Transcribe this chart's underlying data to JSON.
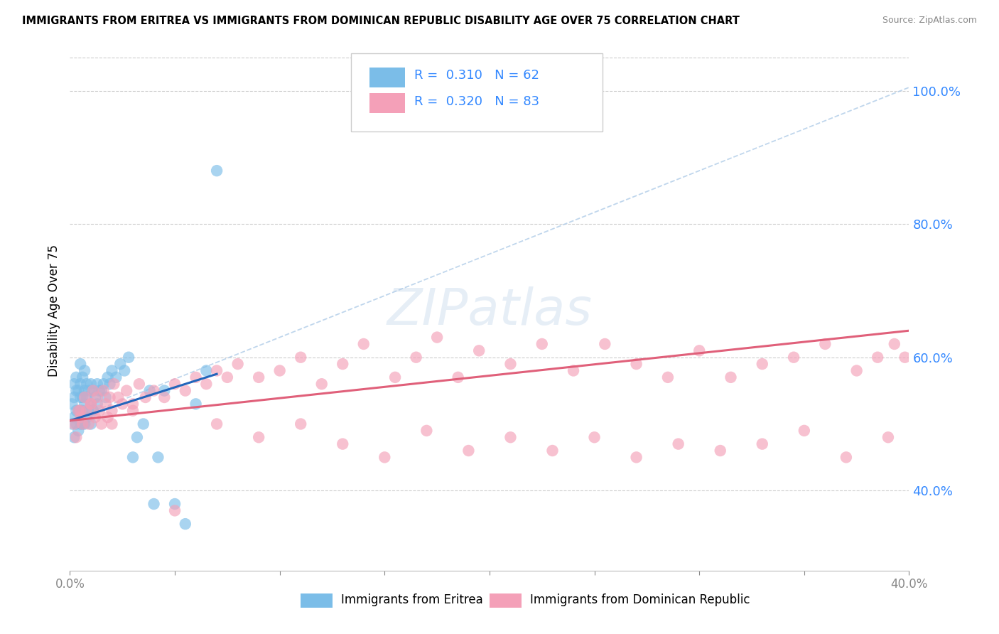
{
  "title": "IMMIGRANTS FROM ERITREA VS IMMIGRANTS FROM DOMINICAN REPUBLIC DISABILITY AGE OVER 75 CORRELATION CHART",
  "source": "Source: ZipAtlas.com",
  "ylabel": "Disability Age Over 75",
  "xmin": 0.0,
  "xmax": 0.4,
  "ymin": 0.28,
  "ymax": 1.06,
  "yticks": [
    0.4,
    0.6,
    0.8,
    1.0
  ],
  "ytick_labels": [
    "40.0%",
    "60.0%",
    "80.0%",
    "100.0%"
  ],
  "xticks": [
    0.0,
    0.05,
    0.1,
    0.15,
    0.2,
    0.25,
    0.3,
    0.35,
    0.4
  ],
  "xtick_labels": [
    "0.0%",
    "",
    "",
    "",
    "",
    "",
    "",
    "",
    "40.0%"
  ],
  "r_eritrea": 0.31,
  "n_eritrea": 62,
  "r_dominican": 0.32,
  "n_dominican": 83,
  "color_eritrea": "#7bbde8",
  "color_dominican": "#f4a0b8",
  "line_color_eritrea": "#2266bb",
  "line_color_dominican": "#e0607a",
  "diag_line_color": "#b0cce8",
  "background_color": "#ffffff",
  "watermark": "ZIPatlas",
  "legend_r1": "R =  0.310   N = 62",
  "legend_r2": "R =  0.320   N = 83",
  "legend_label1": "Immigrants from Eritrea",
  "legend_label2": "Immigrants from Dominican Republic",
  "eritrea_x": [
    0.001,
    0.001,
    0.002,
    0.002,
    0.002,
    0.002,
    0.003,
    0.003,
    0.003,
    0.003,
    0.004,
    0.004,
    0.004,
    0.005,
    0.005,
    0.005,
    0.005,
    0.005,
    0.006,
    0.006,
    0.006,
    0.006,
    0.007,
    0.007,
    0.007,
    0.007,
    0.008,
    0.008,
    0.008,
    0.009,
    0.009,
    0.01,
    0.01,
    0.01,
    0.011,
    0.011,
    0.012,
    0.013,
    0.013,
    0.014,
    0.015,
    0.016,
    0.017,
    0.018,
    0.019,
    0.02,
    0.022,
    0.024,
    0.026,
    0.028,
    0.03,
    0.032,
    0.035,
    0.038,
    0.04,
    0.042,
    0.045,
    0.05,
    0.055,
    0.06,
    0.065,
    0.07
  ],
  "eritrea_y": [
    0.5,
    0.53,
    0.48,
    0.51,
    0.54,
    0.56,
    0.5,
    0.52,
    0.55,
    0.57,
    0.49,
    0.52,
    0.55,
    0.5,
    0.52,
    0.54,
    0.56,
    0.59,
    0.5,
    0.52,
    0.54,
    0.57,
    0.5,
    0.53,
    0.55,
    0.58,
    0.51,
    0.54,
    0.56,
    0.52,
    0.55,
    0.5,
    0.53,
    0.56,
    0.52,
    0.55,
    0.54,
    0.53,
    0.56,
    0.55,
    0.55,
    0.56,
    0.54,
    0.57,
    0.56,
    0.58,
    0.57,
    0.59,
    0.58,
    0.6,
    0.45,
    0.48,
    0.5,
    0.55,
    0.38,
    0.45,
    0.55,
    0.38,
    0.35,
    0.53,
    0.58,
    0.88
  ],
  "dominican_x": [
    0.002,
    0.003,
    0.004,
    0.005,
    0.006,
    0.007,
    0.008,
    0.009,
    0.01,
    0.011,
    0.012,
    0.013,
    0.014,
    0.015,
    0.016,
    0.017,
    0.018,
    0.019,
    0.02,
    0.021,
    0.023,
    0.025,
    0.027,
    0.03,
    0.033,
    0.036,
    0.04,
    0.045,
    0.05,
    0.055,
    0.06,
    0.065,
    0.07,
    0.075,
    0.08,
    0.09,
    0.1,
    0.11,
    0.12,
    0.13,
    0.14,
    0.155,
    0.165,
    0.175,
    0.185,
    0.195,
    0.21,
    0.225,
    0.24,
    0.255,
    0.27,
    0.285,
    0.3,
    0.315,
    0.33,
    0.345,
    0.36,
    0.375,
    0.385,
    0.393,
    0.398,
    0.39,
    0.37,
    0.35,
    0.33,
    0.31,
    0.29,
    0.27,
    0.25,
    0.23,
    0.21,
    0.19,
    0.17,
    0.15,
    0.13,
    0.11,
    0.09,
    0.07,
    0.05,
    0.03,
    0.02,
    0.01,
    0.005
  ],
  "dominican_y": [
    0.5,
    0.48,
    0.52,
    0.51,
    0.5,
    0.54,
    0.52,
    0.5,
    0.53,
    0.55,
    0.51,
    0.54,
    0.52,
    0.5,
    0.55,
    0.53,
    0.51,
    0.54,
    0.52,
    0.56,
    0.54,
    0.53,
    0.55,
    0.53,
    0.56,
    0.54,
    0.55,
    0.54,
    0.56,
    0.55,
    0.57,
    0.56,
    0.58,
    0.57,
    0.59,
    0.57,
    0.58,
    0.6,
    0.56,
    0.59,
    0.62,
    0.57,
    0.6,
    0.63,
    0.57,
    0.61,
    0.59,
    0.62,
    0.58,
    0.62,
    0.59,
    0.57,
    0.61,
    0.57,
    0.59,
    0.6,
    0.62,
    0.58,
    0.6,
    0.62,
    0.6,
    0.48,
    0.45,
    0.49,
    0.47,
    0.46,
    0.47,
    0.45,
    0.48,
    0.46,
    0.48,
    0.46,
    0.49,
    0.45,
    0.47,
    0.5,
    0.48,
    0.5,
    0.37,
    0.52,
    0.5,
    0.53,
    0.52
  ],
  "eritrea_line_x": [
    0.0,
    0.07
  ],
  "eritrea_line_y": [
    0.505,
    0.575
  ],
  "dominican_line_x": [
    0.0,
    0.4
  ],
  "dominican_line_y": [
    0.505,
    0.64
  ],
  "diag_line_x": [
    0.0,
    0.4
  ],
  "diag_line_y": [
    0.505,
    1.005
  ]
}
